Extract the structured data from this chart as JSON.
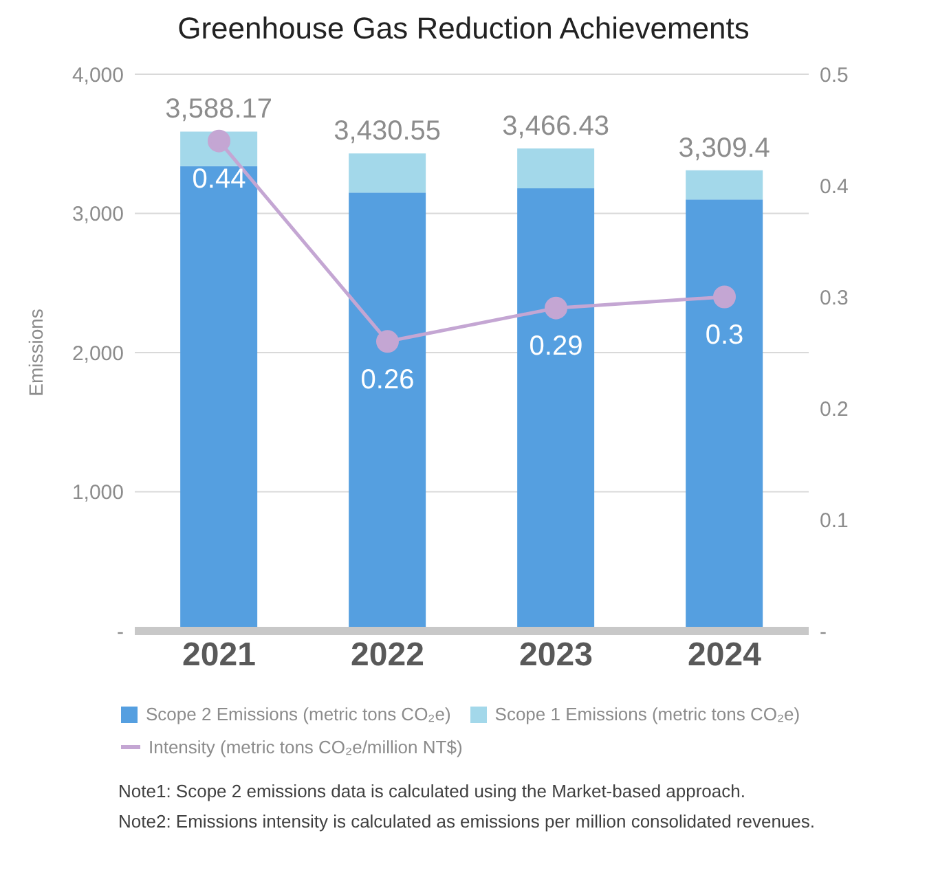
{
  "chart_data": {
    "type": "bar",
    "title": "Greenhouse Gas Reduction Achievements",
    "ylabel": "Emissions",
    "categories": [
      "2021",
      "2022",
      "2023",
      "2024"
    ],
    "stacked": true,
    "series": [
      {
        "name": "Scope 2 Emissions (metric tons CO₂e)",
        "color": "#559fe0",
        "values": [
          3340,
          3150,
          3180,
          3100
        ]
      },
      {
        "name": "Scope 1 Emissions (metric tons CO₂e)",
        "color": "#a3d8ea",
        "values": [
          248.17,
          280.55,
          286.43,
          209.4
        ]
      },
      {
        "name": "Intensity (metric tons CO₂e/million NT$)",
        "type": "line",
        "axis": "y2",
        "color": "#c4a6d3",
        "values": [
          0.44,
          0.26,
          0.29,
          0.3
        ],
        "marker": "circle",
        "data_labels": true
      }
    ],
    "totals": [
      "3,588.17",
      "3,430.55",
      "3,466.43",
      "3,309.4"
    ],
    "ylim": [
      0,
      4000
    ],
    "yticks": [
      {
        "value": 0,
        "label": "-"
      },
      {
        "value": 1000,
        "label": "1,000"
      },
      {
        "value": 2000,
        "label": "2,000"
      },
      {
        "value": 3000,
        "label": "3,000"
      },
      {
        "value": 4000,
        "label": "4,000"
      }
    ],
    "y2lim": [
      0,
      0.5
    ],
    "y2ticks": [
      {
        "value": 0,
        "label": "-"
      },
      0.1,
      0.2,
      0.3,
      0.4,
      0.5
    ],
    "grid": "y",
    "legend": "bottom",
    "annotations": [
      "Note1: Scope 2 emissions data is calculated using the Market-based approach.",
      "Note2: Emissions intensity is calculated as emissions per million consolidated revenues."
    ]
  }
}
